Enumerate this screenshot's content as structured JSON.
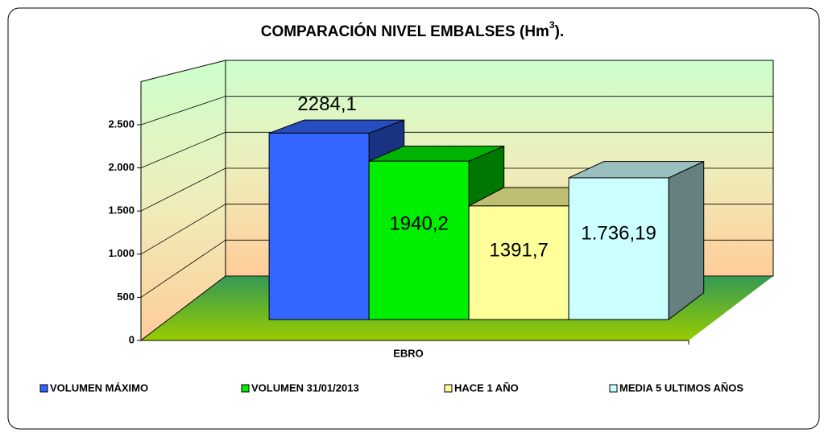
{
  "chart_data": {
    "type": "bar3d",
    "title_parts": [
      "COMPARACIÓN NIVEL EMBALSES (Hm",
      "3",
      ")."
    ],
    "categories": [
      "EBRO"
    ],
    "series": [
      {
        "name": "VOLUMEN MÁXIMO",
        "color": "#3366ff",
        "values": [
          2284.1
        ],
        "value_labels": [
          "2284,1"
        ]
      },
      {
        "name": "VOLUMEN 31/01/2013",
        "color": "#00ee00",
        "values": [
          1940.2
        ],
        "value_labels": [
          "1940,2"
        ]
      },
      {
        "name": "HACE 1 AÑO",
        "color": "#ffff99",
        "values": [
          1391.7
        ],
        "value_labels": [
          "1391,7"
        ]
      },
      {
        "name": "MEDIA 5 ULTIMOS AÑOS",
        "color": "#ccffff",
        "values": [
          1736.19
        ],
        "value_labels": [
          "1.736,19"
        ]
      }
    ],
    "ylim": [
      0,
      3000
    ],
    "yticks": [
      0,
      500,
      {
        "value": 1000,
        "label": "1.000"
      },
      {
        "value": 1500,
        "label": "1.500"
      },
      {
        "value": 2000,
        "label": "2.000"
      },
      {
        "value": 2500,
        "label": "2.500"
      }
    ],
    "grid": true,
    "legend": "bottom"
  }
}
